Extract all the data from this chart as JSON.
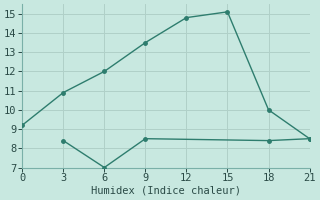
{
  "line1_x": [
    0,
    3,
    6,
    9,
    12,
    15,
    18,
    21
  ],
  "line1_y": [
    9.2,
    10.9,
    12.0,
    13.5,
    14.8,
    15.1,
    10.0,
    8.5
  ],
  "line2_x": [
    3,
    6,
    9,
    18,
    21
  ],
  "line2_y": [
    8.4,
    7.0,
    8.5,
    8.4,
    8.5
  ],
  "line_color": "#2e7d6e",
  "bg_color": "#c8e8e0",
  "grid_color": "#b0d0c8",
  "spine_color": "#7ab0a8",
  "tick_color": "#2a4a46",
  "xlabel": "Humidex (Indice chaleur)",
  "xlim": [
    0,
    21
  ],
  "ylim": [
    7,
    15.5
  ],
  "xticks": [
    0,
    3,
    6,
    9,
    12,
    15,
    18,
    21
  ],
  "yticks": [
    7,
    8,
    9,
    10,
    11,
    12,
    13,
    14,
    15
  ],
  "marker": "o",
  "markersize": 2.5,
  "linewidth": 1.0,
  "xlabel_fontsize": 7.5,
  "tick_fontsize": 7.5
}
